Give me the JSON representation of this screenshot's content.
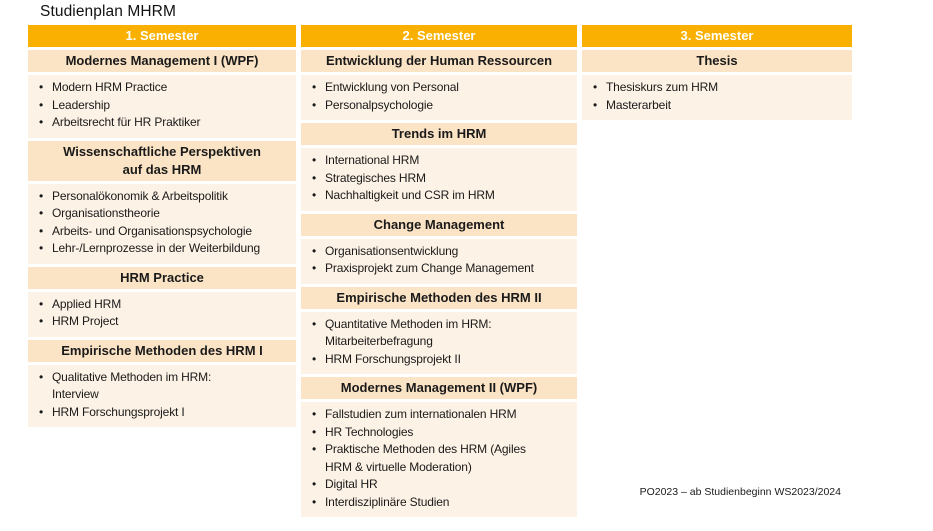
{
  "title": "Studienplan MHRM",
  "footnote": "PO2023 – ab Studienbeginn WS2023/2024",
  "colors": {
    "header_bg": "#F9B000",
    "header_text": "#FFFFFF",
    "section_bg": "#FBE3C5",
    "body_bg": "#FDF2E6",
    "text": "#1A1A1A"
  },
  "columns": [
    {
      "header": "1. Semester",
      "sections": [
        {
          "title": "Modernes Management I (WPF)",
          "items": [
            "Modern HRM Practice",
            "Leadership",
            "Arbeitsrecht für HR Praktiker"
          ]
        },
        {
          "title": "Wissenschaftliche Perspektiven\nauf das HRM",
          "items": [
            "Personalökonomik & Arbeitspolitik",
            "Organisationstheorie",
            "Arbeits- und Organisationspsychologie",
            "Lehr-/Lernprozesse in der Weiterbildung"
          ]
        },
        {
          "title": "HRM Practice",
          "items": [
            "Applied HRM",
            "HRM Project"
          ]
        },
        {
          "title": "Empirische Methoden des HRM I",
          "items": [
            "Qualitative Methoden im HRM:\nInterview",
            "HRM Forschungsprojekt I"
          ]
        }
      ]
    },
    {
      "header": "2. Semester",
      "sections": [
        {
          "title": "Entwicklung der Human Ressourcen",
          "items": [
            "Entwicklung von Personal",
            "Personalpsychologie"
          ]
        },
        {
          "title": "Trends im HRM",
          "items": [
            "International HRM",
            "Strategisches HRM",
            "Nachhaltigkeit und CSR im HRM"
          ]
        },
        {
          "title": "Change Management",
          "items": [
            "Organisationsentwicklung",
            "Praxisprojekt zum Change Management"
          ]
        },
        {
          "title": "Empirische Methoden des HRM II",
          "items": [
            "Quantitative Methoden im HRM:\nMitarbeiterbefragung",
            "HRM Forschungsprojekt II"
          ]
        },
        {
          "title": "Modernes Management II (WPF)",
          "items": [
            "Fallstudien zum internationalen HRM",
            "HR Technologies",
            "Praktische Methoden des HRM (Agiles\nHRM & virtuelle Moderation)",
            "Digital HR",
            "Interdisziplinäre Studien"
          ]
        }
      ]
    },
    {
      "header": "3. Semester",
      "sections": [
        {
          "title": "Thesis",
          "items": [
            "Thesiskurs zum HRM",
            "Masterarbeit"
          ]
        }
      ]
    }
  ]
}
